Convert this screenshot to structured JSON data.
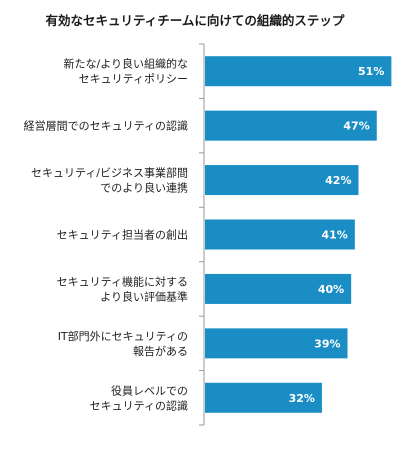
{
  "chart_data": {
    "type": "bar",
    "orientation": "horizontal",
    "title": "有効なセキュリティチームに向けての組織的ステップ",
    "categories": [
      [
        "新たな/より良い組織的な",
        "セキュリティポリシー"
      ],
      [
        "経営層間でのセキュリティの認識"
      ],
      [
        "セキュリティ/ビジネス事業部間",
        "でのより良い連携"
      ],
      [
        "セキュリティ担当者の創出"
      ],
      [
        "セキュリティ機能に対する",
        "より良い評価基準"
      ],
      [
        "IT部門外にセキュリティの",
        "報告がある"
      ],
      [
        "役員レベルでの",
        "セキュリティの認識"
      ]
    ],
    "values": [
      51,
      47,
      42,
      41,
      40,
      39,
      32
    ],
    "value_labels": [
      "51%",
      "47%",
      "42%",
      "41%",
      "40%",
      "39%",
      "32%"
    ],
    "unit": "%",
    "xlim": [
      0,
      55
    ],
    "bar_color": "#1a8ec4",
    "axis_color": "#9a9a9a",
    "grid": false,
    "legend": "none"
  }
}
